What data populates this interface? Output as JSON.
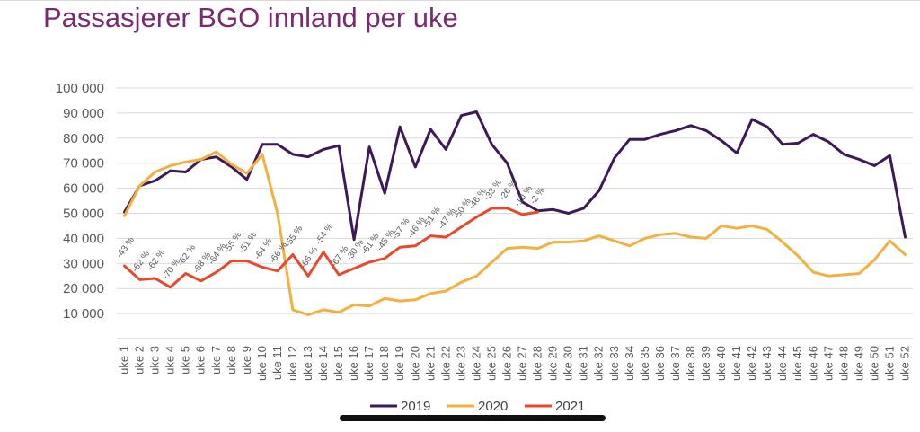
{
  "title": "Passasjerer BGO innland per uke",
  "chart_data": {
    "type": "line",
    "title": "Passasjerer BGO innland per uke",
    "xlabel": "",
    "ylabel": "",
    "ylim": [
      0,
      100000
    ],
    "grid": true,
    "legend_position": "bottom",
    "y_ticks": [
      "10 000",
      "20 000",
      "30 000",
      "40 000",
      "50 000",
      "60 000",
      "70 000",
      "80 000",
      "90 000",
      "100 000"
    ],
    "categories": [
      "uke 1",
      "uke 2",
      "uke 3",
      "uke 4",
      "uke 5",
      "uke 6",
      "uke 7",
      "uke 8",
      "uke 9",
      "uke 10",
      "uke 11",
      "uke 12",
      "uke 13",
      "uke 14",
      "uke 15",
      "uke 16",
      "uke 17",
      "uke 18",
      "uke 19",
      "uke 20",
      "uke 21",
      "uke 22",
      "uke 23",
      "uke 24",
      "uke 25",
      "uke 26",
      "uke 27",
      "uke 28",
      "uke 29",
      "uke 30",
      "uke 31",
      "uke 32",
      "uke 33",
      "uke 34",
      "uke 35",
      "uke 36",
      "uke 37",
      "uke 38",
      "uke 39",
      "uke 40",
      "uke 41",
      "uke 42",
      "uke 43",
      "uke 44",
      "uke 45",
      "uke 46",
      "uke 47",
      "uke 48",
      "uke 49",
      "uke 50",
      "uke 51",
      "uke 52"
    ],
    "series": [
      {
        "name": "2019",
        "color": "#3d1a57",
        "values": [
          50500,
          61000,
          63000,
          67000,
          66500,
          71500,
          72500,
          68500,
          63500,
          77500,
          77500,
          73500,
          72500,
          75500,
          77000,
          39500,
          76500,
          58000,
          84500,
          68500,
          83500,
          75500,
          89000,
          90500,
          77500,
          70000,
          54500,
          51000,
          51500,
          50000,
          52000,
          59000,
          72000,
          79500,
          79500,
          81500,
          83000,
          85000,
          83000,
          79000,
          74000,
          87500,
          84500,
          77500,
          78000,
          81500,
          78500,
          73500,
          71500,
          69000,
          73000,
          40500
        ]
      },
      {
        "name": "2020",
        "color": "#f4b03e",
        "values": [
          49000,
          61000,
          66500,
          69000,
          70500,
          71500,
          74500,
          69500,
          66000,
          73500,
          50000,
          11500,
          9500,
          11500,
          10500,
          13500,
          13000,
          16000,
          15000,
          15500,
          18000,
          19000,
          22500,
          25000,
          30500,
          36000,
          36500,
          36000,
          38500,
          38500,
          39000,
          41000,
          39000,
          37000,
          40000,
          41500,
          42000,
          40500,
          40000,
          45000,
          44000,
          45000,
          43500,
          38500,
          33000,
          26500,
          25000,
          25500,
          26000,
          31500,
          39000,
          33500
        ]
      },
      {
        "name": "2021",
        "color": "#e8492c",
        "values": [
          29000,
          23500,
          24000,
          20500,
          26000,
          23000,
          26500,
          31000,
          31000,
          28500,
          27000,
          33500,
          25000,
          34500,
          25500,
          28000,
          30500,
          32000,
          36500,
          37000,
          41000,
          40500,
          44500,
          48500,
          52000,
          52000,
          49500,
          50500,
          null,
          null,
          null,
          null,
          null,
          null,
          null,
          null,
          null,
          null,
          null,
          null,
          null,
          null,
          null,
          null,
          null,
          null,
          null,
          null,
          null,
          null,
          null,
          null
        ]
      }
    ],
    "data_labels": [
      "-43 %",
      "-62 %",
      "-62 %",
      "-70 %",
      "-62 %",
      "-68 %",
      "-64 %",
      "-55 %",
      "-51 %",
      "-64 %",
      "-66 %",
      "-55 %",
      "-66 %",
      "-54 %",
      "-67 %",
      "-30 %",
      "-61 %",
      "-45 %",
      "-57 %",
      "-46 %",
      "-51 %",
      "-47 %",
      "-50 %",
      "-46 %",
      "-33 %",
      "-26 %",
      "-10 %",
      "-2 %"
    ]
  }
}
